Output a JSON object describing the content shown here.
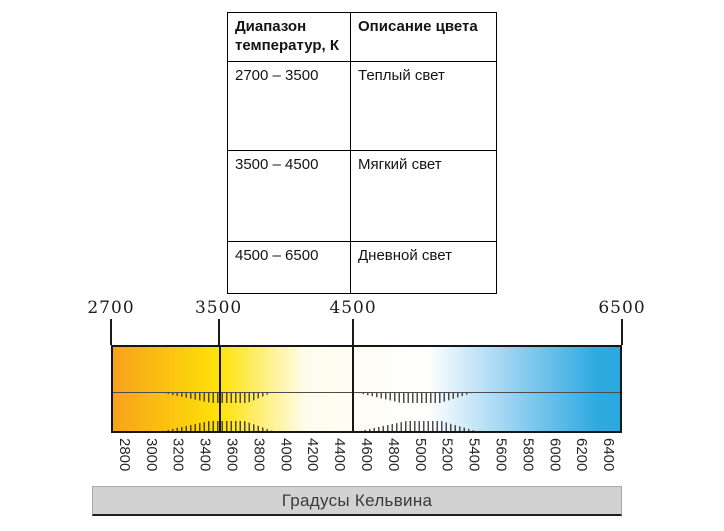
{
  "table": {
    "headers": [
      "Диапазон температур, К",
      "Описание цвета"
    ],
    "rows": [
      {
        "range": "2700 – 3500",
        "description": "Теплый свет"
      },
      {
        "range": "3500 – 4500",
        "description": "Мягкий свет"
      },
      {
        "range": "4500 – 6500",
        "description": "Дневной свет"
      }
    ]
  },
  "scale": {
    "min_k": 2700,
    "max_k": 6500,
    "markers": [
      {
        "label": "2700",
        "value": 2700,
        "line_through_bar": false
      },
      {
        "label": "3500",
        "value": 3500,
        "line_through_bar": true
      },
      {
        "label": "4500",
        "value": 4500,
        "line_through_bar": true
      },
      {
        "label": "6500",
        "value": 6500,
        "line_through_bar": false
      }
    ],
    "tick_labels": [
      "2800",
      "3000",
      "3200",
      "3400",
      "3600",
      "3800",
      "4000",
      "4200",
      "4400",
      "4600",
      "4800",
      "5000",
      "5200",
      "5400",
      "5600",
      "5800",
      "6000",
      "6200",
      "6400"
    ],
    "gradient_stops": [
      {
        "pos": 0,
        "color": "#F7A21B"
      },
      {
        "pos": 21,
        "color": "#FFE208"
      },
      {
        "pos": 38,
        "color": "#FDFCEC"
      },
      {
        "pos": 62,
        "color": "#FFFFFF"
      },
      {
        "pos": 80,
        "color": "#8FCEF0"
      },
      {
        "pos": 95,
        "color": "#30ABE1"
      },
      {
        "pos": 100,
        "color": "#29A8E0"
      }
    ],
    "footer_label": "Градусы Кельвина"
  },
  "chart_data": {
    "type": "heatmap",
    "title": "Градусы Кельвина",
    "xlim": [
      2700,
      6500
    ],
    "x_ticks": [
      2800,
      3000,
      3200,
      3400,
      3600,
      3800,
      4000,
      4200,
      4400,
      4600,
      4800,
      5000,
      5200,
      5400,
      5600,
      5800,
      6000,
      6200,
      6400
    ],
    "top_markers": [
      2700,
      3500,
      4500,
      6500
    ],
    "zones": [
      {
        "range": [
          2700,
          3500
        ],
        "label": "Теплый свет",
        "color_start": "#F7A21B",
        "color_end": "#FFE208"
      },
      {
        "range": [
          3500,
          4500
        ],
        "label": "Мягкий свет",
        "color_start": "#FFE208",
        "color_end": "#FFFFFF"
      },
      {
        "range": [
          4500,
          6500
        ],
        "label": "Дневной свет",
        "color_start": "#FFFFFF",
        "color_end": "#29A8E0"
      }
    ]
  }
}
